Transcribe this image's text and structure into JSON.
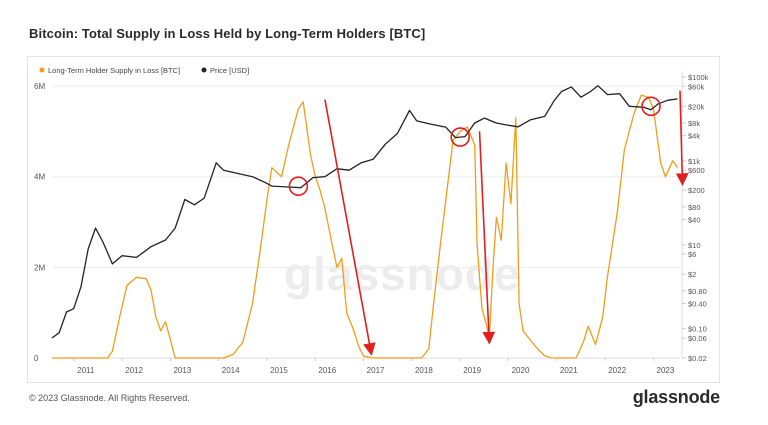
{
  "title": "Bitcoin: Total Supply in Loss Held by Long-Term Holders [BTC]",
  "footer": {
    "copyright": "© 2023 Glassnode. All Rights Reserved.",
    "logo": "glassnode"
  },
  "watermark": "glassnode",
  "colors": {
    "supply": "#f39c19",
    "price": "#222222",
    "circle": "#e0201f",
    "arrow": "#e0201f",
    "grid": "#eeeeee"
  },
  "chart_data": {
    "type": "line",
    "legend_position": "top-left",
    "grid": true,
    "x_axis": {
      "ticks": [
        "2011",
        "2012",
        "2013",
        "2014",
        "2015",
        "2016",
        "2017",
        "2018",
        "2019",
        "2020",
        "2021",
        "2022",
        "2023"
      ],
      "range": [
        2010.55,
        2023.55
      ]
    },
    "y_left": {
      "ticks": [
        "6M",
        "4M",
        "2M",
        "0"
      ],
      "tick_values": [
        6000000,
        4000000,
        2000000,
        0
      ],
      "range": [
        0,
        6200000
      ]
    },
    "y_right": {
      "scale": "log",
      "ticks": [
        "$100k",
        "$60k",
        "$20k",
        "$8k",
        "$4k",
        "$1k",
        "$600",
        "$200",
        "$80",
        "$40",
        "$10",
        "$6",
        "$2",
        "$0.80",
        "$0.40",
        "$0.10",
        "$0.06",
        "$0.02"
      ],
      "tick_values": [
        100000,
        60000,
        20000,
        8000,
        4000,
        1000,
        600,
        200,
        80,
        40,
        10,
        6,
        2,
        0.8,
        0.4,
        0.1,
        0.06,
        0.02
      ],
      "range": [
        0.02,
        100000
      ]
    },
    "series": [
      {
        "name": "Long-Term Holder Supply in Loss [BTC]",
        "axis": "left",
        "points": [
          [
            2010.55,
            0
          ],
          [
            2011.0,
            0
          ],
          [
            2011.7,
            0
          ],
          [
            2011.8,
            150000
          ],
          [
            2011.95,
            900000
          ],
          [
            2012.1,
            1600000
          ],
          [
            2012.3,
            1780000
          ],
          [
            2012.5,
            1750000
          ],
          [
            2012.6,
            1500000
          ],
          [
            2012.7,
            900000
          ],
          [
            2012.8,
            600000
          ],
          [
            2012.9,
            800000
          ],
          [
            2013.0,
            400000
          ],
          [
            2013.1,
            0
          ],
          [
            2013.9,
            0
          ],
          [
            2014.1,
            0
          ],
          [
            2014.3,
            80000
          ],
          [
            2014.5,
            350000
          ],
          [
            2014.7,
            1200000
          ],
          [
            2014.85,
            2300000
          ],
          [
            2015.0,
            3500000
          ],
          [
            2015.1,
            4200000
          ],
          [
            2015.3,
            4000000
          ],
          [
            2015.45,
            4700000
          ],
          [
            2015.55,
            5100000
          ],
          [
            2015.65,
            5500000
          ],
          [
            2015.75,
            5650000
          ],
          [
            2015.9,
            4500000
          ],
          [
            2016.0,
            4000000
          ],
          [
            2016.1,
            3700000
          ],
          [
            2016.2,
            3300000
          ],
          [
            2016.35,
            2500000
          ],
          [
            2016.45,
            2000000
          ],
          [
            2016.55,
            2200000
          ],
          [
            2016.65,
            1000000
          ],
          [
            2016.8,
            600000
          ],
          [
            2016.9,
            250000
          ],
          [
            2017.0,
            40000
          ],
          [
            2017.2,
            0
          ],
          [
            2018.2,
            0
          ],
          [
            2018.35,
            200000
          ],
          [
            2018.45,
            1200000
          ],
          [
            2018.6,
            2600000
          ],
          [
            2018.75,
            3900000
          ],
          [
            2018.85,
            4800000
          ],
          [
            2019.0,
            5000000
          ],
          [
            2019.15,
            5100000
          ],
          [
            2019.3,
            4700000
          ],
          [
            2019.35,
            2500000
          ],
          [
            2019.45,
            1100000
          ],
          [
            2019.55,
            700000
          ],
          [
            2019.6,
            400000
          ],
          [
            2019.68,
            2000000
          ],
          [
            2019.75,
            3100000
          ],
          [
            2019.85,
            2600000
          ],
          [
            2019.95,
            4300000
          ],
          [
            2020.05,
            3400000
          ],
          [
            2020.15,
            5300000
          ],
          [
            2020.22,
            1200000
          ],
          [
            2020.3,
            600000
          ],
          [
            2020.45,
            400000
          ],
          [
            2020.6,
            200000
          ],
          [
            2020.75,
            50000
          ],
          [
            2020.9,
            0
          ],
          [
            2021.4,
            0
          ],
          [
            2021.55,
            350000
          ],
          [
            2021.65,
            700000
          ],
          [
            2021.8,
            300000
          ],
          [
            2021.95,
            900000
          ],
          [
            2022.05,
            1800000
          ],
          [
            2022.25,
            3200000
          ],
          [
            2022.4,
            4600000
          ],
          [
            2022.6,
            5400000
          ],
          [
            2022.75,
            5800000
          ],
          [
            2022.9,
            5750000
          ],
          [
            2023.0,
            5500000
          ],
          [
            2023.15,
            4300000
          ],
          [
            2023.25,
            4000000
          ],
          [
            2023.4,
            4350000
          ],
          [
            2023.5,
            4200000
          ]
        ]
      },
      {
        "name": "Price [USD]",
        "axis": "right",
        "points": [
          [
            2010.55,
            0.06
          ],
          [
            2010.7,
            0.08
          ],
          [
            2010.85,
            0.25
          ],
          [
            2011.0,
            0.3
          ],
          [
            2011.15,
            1.0
          ],
          [
            2011.3,
            8.0
          ],
          [
            2011.45,
            25.0
          ],
          [
            2011.6,
            12.0
          ],
          [
            2011.8,
            3.5
          ],
          [
            2012.0,
            5.5
          ],
          [
            2012.3,
            5.0
          ],
          [
            2012.6,
            9.0
          ],
          [
            2012.9,
            13.0
          ],
          [
            2013.1,
            25.0
          ],
          [
            2013.3,
            120.0
          ],
          [
            2013.5,
            90.0
          ],
          [
            2013.7,
            130.0
          ],
          [
            2013.95,
            900.0
          ],
          [
            2014.1,
            600.0
          ],
          [
            2014.4,
            500.0
          ],
          [
            2014.7,
            420.0
          ],
          [
            2014.95,
            310.0
          ],
          [
            2015.1,
            250.0
          ],
          [
            2015.4,
            240.0
          ],
          [
            2015.7,
            230.0
          ],
          [
            2015.95,
            400.0
          ],
          [
            2016.2,
            420.0
          ],
          [
            2016.45,
            650.0
          ],
          [
            2016.7,
            600.0
          ],
          [
            2016.95,
            900.0
          ],
          [
            2017.2,
            1100.0
          ],
          [
            2017.45,
            2500.0
          ],
          [
            2017.7,
            4500.0
          ],
          [
            2017.95,
            16000.0
          ],
          [
            2018.1,
            9000.0
          ],
          [
            2018.4,
            7500.0
          ],
          [
            2018.7,
            6400.0
          ],
          [
            2018.9,
            3600.0
          ],
          [
            2019.1,
            3800.0
          ],
          [
            2019.3,
            8000.0
          ],
          [
            2019.5,
            10500.0
          ],
          [
            2019.75,
            8000.0
          ],
          [
            2019.95,
            7200.0
          ],
          [
            2020.2,
            6500.0
          ],
          [
            2020.45,
            9500.0
          ],
          [
            2020.75,
            11500.0
          ],
          [
            2020.95,
            28000.0
          ],
          [
            2021.1,
            45000.0
          ],
          [
            2021.3,
            58000.0
          ],
          [
            2021.5,
            33000.0
          ],
          [
            2021.7,
            45000.0
          ],
          [
            2021.85,
            62000.0
          ],
          [
            2022.05,
            38000.0
          ],
          [
            2022.3,
            40000.0
          ],
          [
            2022.5,
            20000.0
          ],
          [
            2022.8,
            19000.0
          ],
          [
            2022.95,
            16500.0
          ],
          [
            2023.1,
            23000.0
          ],
          [
            2023.3,
            28000.0
          ],
          [
            2023.5,
            30000.0
          ]
        ]
      }
    ],
    "annotations": {
      "circles": [
        {
          "x": 2015.65,
          "y": 250
        },
        {
          "x": 2019.0,
          "y": 3700
        },
        {
          "x": 2022.95,
          "y": 20000
        }
      ],
      "arrows": [
        {
          "from": {
            "x": 2016.2,
            "y": 5700000
          },
          "to": {
            "x": 2017.15,
            "y": 150000
          }
        },
        {
          "from": {
            "x": 2019.4,
            "y": 5000000
          },
          "to": {
            "x": 2019.6,
            "y": 400000
          }
        },
        {
          "from": {
            "x": 2023.55,
            "y": 5900000
          },
          "to": {
            "x": 2023.6,
            "y": 3900000
          }
        }
      ]
    }
  }
}
